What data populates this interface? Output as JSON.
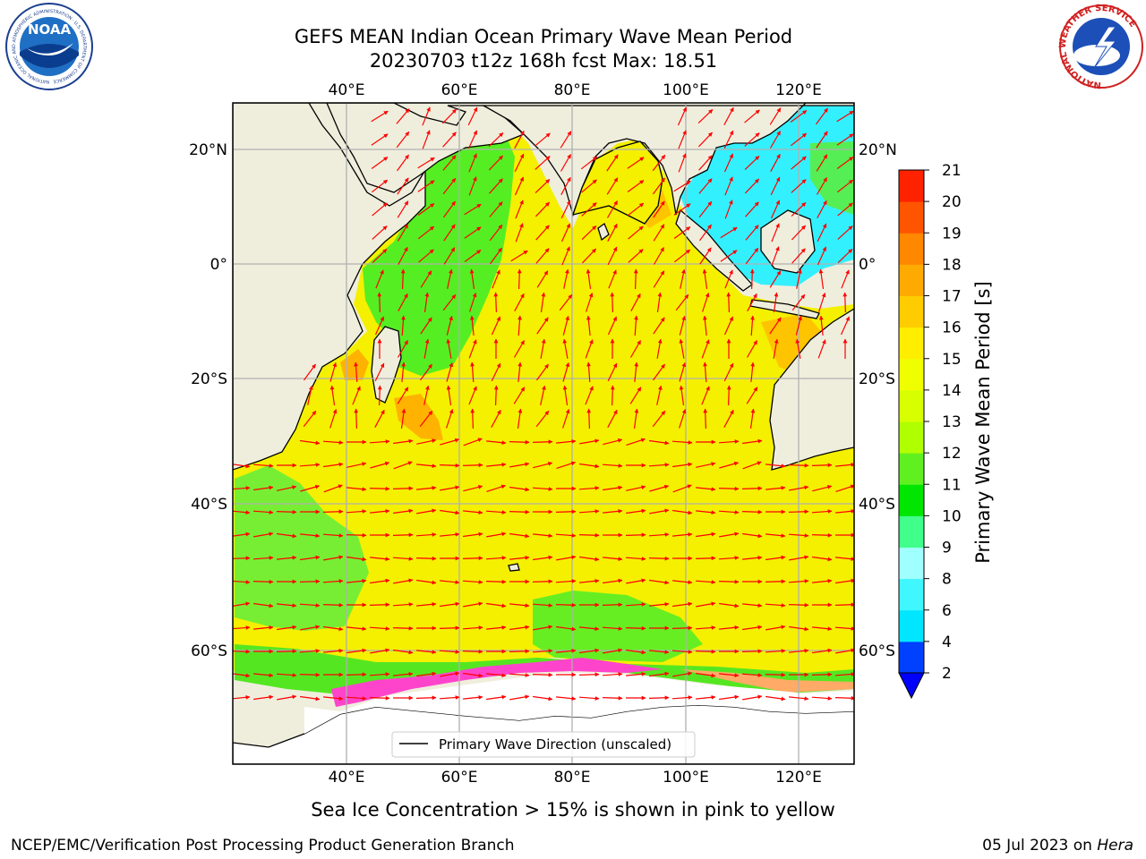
{
  "title": {
    "line1": "GEFS MEAN Indian Ocean Primary Wave Mean Period",
    "line2": "20230703 t12z 168h fcst   Max: 18.51"
  },
  "map": {
    "lon_ticks_top": [
      "40°E",
      "60°E",
      "80°E",
      "100°E",
      "120°E"
    ],
    "lon_ticks_bottom": [
      "40°E",
      "60°E",
      "80°E",
      "100°E",
      "120°E"
    ],
    "lat_ticks_left": [
      "20°N",
      "0°",
      "20°S",
      "40°S",
      "60°S"
    ],
    "lat_ticks_right": [
      "20°N",
      "0°",
      "20°S",
      "40°S",
      "60°S"
    ],
    "legend_label": "Primary Wave Direction (unscaled)",
    "extent": {
      "lon": [
        20,
        130
      ],
      "lat": [
        -70,
        27
      ]
    },
    "land_color": "#efeedd",
    "arrow_color": "#ff0000",
    "grid": "on"
  },
  "colorbar": {
    "label": "Primary Wave Mean Period [s]",
    "ticks": [
      "2",
      "4",
      "6",
      "8",
      "9",
      "10",
      "11",
      "12",
      "13",
      "14",
      "15",
      "16",
      "17",
      "18",
      "19",
      "20",
      "21"
    ],
    "colors": [
      "#0040ff",
      "#00e6ff",
      "#40f6ff",
      "#a0ffff",
      "#40ff8a",
      "#00e600",
      "#60f020",
      "#b0ff00",
      "#d8ff00",
      "#f0ff00",
      "#ffee00",
      "#ffcc00",
      "#ffaa00",
      "#ff8800",
      "#ff5500",
      "#ff2200"
    ],
    "under_color": "#0000ff"
  },
  "note": "Sea Ice Concentration > 15% is shown in pink to yellow",
  "footer": {
    "left": "NCEP/EMC/Verification Post Processing Product Generation Branch",
    "right_date": "05 Jul 2023 on ",
    "right_host": "Hera"
  },
  "logos": {
    "noaa_text": "NOAA",
    "noaa_ring": "NATIONAL OCEANIC AND ATMOSPHERIC ADMINISTRATION · U.S. DEPARTMENT OF COMMERCE",
    "nws_ring": "NATIONAL WEATHER SERVICE"
  }
}
